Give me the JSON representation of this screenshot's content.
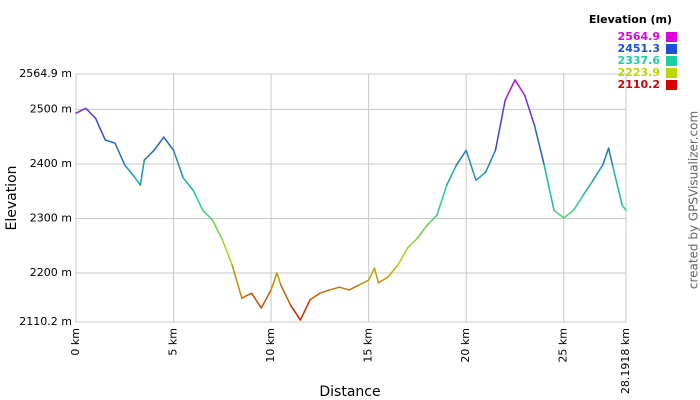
{
  "chart_data": {
    "type": "line",
    "xlabel": "Distance",
    "ylabel": "Elevation",
    "credit": "created by GPSVisualizer.com",
    "legend_title": "Elevation (m)",
    "colorscale": [
      {
        "value": 2564.9,
        "color": "#e000e0"
      },
      {
        "value": 2451.3,
        "color": "#1f4fd8"
      },
      {
        "value": 2337.6,
        "color": "#18d0a0"
      },
      {
        "value": 2223.9,
        "color": "#b8d800"
      },
      {
        "value": 2110.2,
        "color": "#d80000"
      }
    ],
    "x": [
      0,
      0.5,
      1,
      1.5,
      2,
      2.5,
      3,
      3.3,
      3.5,
      4,
      4.5,
      5,
      5.5,
      6,
      6.5,
      7,
      7.5,
      8,
      8.5,
      9,
      9.5,
      10,
      10.3,
      10.5,
      11,
      11.5,
      12,
      12.5,
      13,
      13.5,
      14,
      14.5,
      15,
      15.3,
      15.5,
      16,
      16.5,
      17,
      17.5,
      18,
      18.5,
      19,
      19.5,
      20,
      20.5,
      21,
      21.5,
      22,
      22.5,
      23,
      23.5,
      24,
      24.5,
      25,
      25.5,
      26,
      26.5,
      27,
      27.3,
      27.5,
      28,
      28.1918
    ],
    "values": [
      2493,
      2502,
      2484,
      2444,
      2438,
      2398,
      2376,
      2361,
      2407,
      2425,
      2449,
      2425,
      2374,
      2352,
      2315,
      2297,
      2261,
      2215,
      2154,
      2163,
      2136,
      2169,
      2200,
      2178,
      2141,
      2114,
      2151,
      2163,
      2169,
      2174,
      2169,
      2178,
      2187,
      2209,
      2182,
      2193,
      2215,
      2246,
      2264,
      2288,
      2306,
      2361,
      2398,
      2425,
      2370,
      2385,
      2425,
      2517,
      2554,
      2526,
      2471,
      2398,
      2315,
      2301,
      2315,
      2343,
      2370,
      2398,
      2429,
      2398,
      2324,
      2315
    ],
    "xlim": [
      0,
      28.1918
    ],
    "ylim": [
      2110.2,
      2564.9
    ],
    "xticks": [
      {
        "value": 0,
        "label": "0 km"
      },
      {
        "value": 5,
        "label": "5 km"
      },
      {
        "value": 10,
        "label": "10 km"
      },
      {
        "value": 15,
        "label": "15 km"
      },
      {
        "value": 20,
        "label": "20 km"
      },
      {
        "value": 25,
        "label": "25 km"
      },
      {
        "value": 28.1918,
        "label": "28.1918 km"
      }
    ],
    "yticks": [
      {
        "value": 2110.2,
        "label": "2110.2 m"
      },
      {
        "value": 2200,
        "label": "2200 m"
      },
      {
        "value": 2300,
        "label": "2300 m"
      },
      {
        "value": 2400,
        "label": "2400 m"
      },
      {
        "value": 2500,
        "label": "2500 m"
      },
      {
        "value": 2564.9,
        "label": "2564.9 m"
      }
    ],
    "grid": true
  }
}
